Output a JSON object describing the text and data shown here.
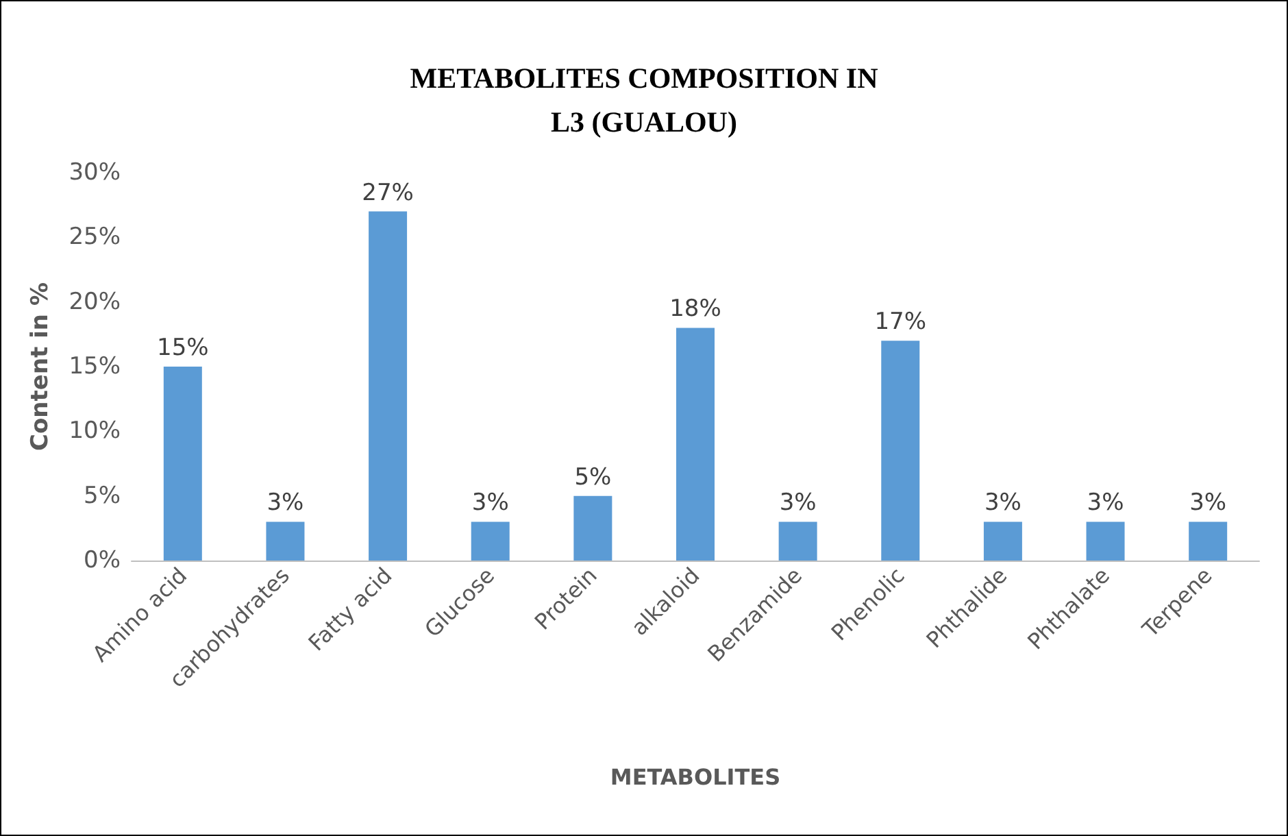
{
  "chart_data": {
    "type": "bar",
    "title": "METABOLITES COMPOSITION IN\nL3 (GUALOU)",
    "xlabel": "METABOLITES",
    "ylabel": "Content in %",
    "categories": [
      "Amino acid",
      "carbohydrates",
      "Fatty acid",
      "Glucose",
      "Protein",
      "alkaloid",
      "Benzamide",
      "Phenolic",
      "Phthalide",
      "Phthalate",
      "Terpene"
    ],
    "values": [
      15,
      3,
      27,
      3,
      5,
      18,
      3,
      17,
      3,
      3,
      3
    ],
    "value_labels": [
      "15%",
      "3%",
      "27%",
      "3%",
      "5%",
      "18%",
      "3%",
      "17%",
      "3%",
      "3%",
      "3%"
    ],
    "color": "#5b9bd5",
    "ylim": [
      0,
      30
    ],
    "yticks": [
      {
        "value": 0,
        "label": "0%"
      },
      {
        "value": 5,
        "label": "5%"
      },
      {
        "value": 10,
        "label": "10%"
      },
      {
        "value": 15,
        "label": "15%"
      },
      {
        "value": 20,
        "label": "20%"
      },
      {
        "value": 25,
        "label": "25%"
      },
      {
        "value": 30,
        "label": "30%"
      }
    ],
    "grid": false
  }
}
